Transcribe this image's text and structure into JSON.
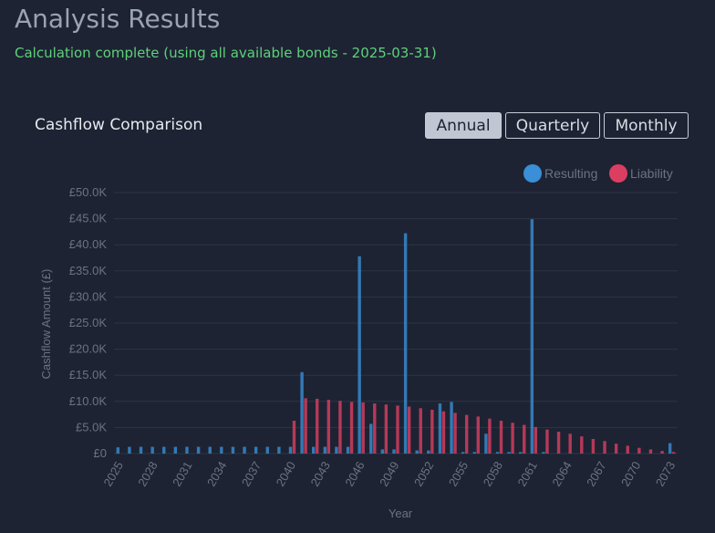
{
  "page": {
    "title": "Analysis Results",
    "status": "Calculation complete (using all available bonds - 2025-03-31)"
  },
  "card": {
    "title": "Cashflow Comparison",
    "toggles": [
      "Annual",
      "Quarterly",
      "Monthly"
    ],
    "active_toggle": "Annual"
  },
  "colors": {
    "resulting": "#3a8fd6",
    "liability": "#dc3e62",
    "grid": "#2c3444"
  },
  "chart_data": {
    "type": "bar",
    "xlabel": "Year",
    "ylabel": "Cashflow Amount (£)",
    "ylim": [
      0,
      50000
    ],
    "y_ticks": [
      "£0",
      "£5.0K",
      "£10.0K",
      "£15.0K",
      "£20.0K",
      "£25.0K",
      "£30.0K",
      "£35.0K",
      "£40.0K",
      "£45.0K",
      "£50.0K"
    ],
    "tick_labels": [
      "2025",
      "2028",
      "2031",
      "2034",
      "2037",
      "2040",
      "2043",
      "2046",
      "2049",
      "2052",
      "2055",
      "2058",
      "2061",
      "2064",
      "2067",
      "2070",
      "2073"
    ],
    "legend": {
      "position": "top-right"
    },
    "categories": [
      2025,
      2026,
      2027,
      2028,
      2029,
      2030,
      2031,
      2032,
      2033,
      2034,
      2035,
      2036,
      2037,
      2038,
      2039,
      2040,
      2041,
      2042,
      2043,
      2044,
      2045,
      2046,
      2047,
      2048,
      2049,
      2050,
      2051,
      2052,
      2053,
      2054,
      2055,
      2056,
      2057,
      2058,
      2059,
      2060,
      2061,
      2062,
      2063,
      2064,
      2065,
      2066,
      2067,
      2068,
      2069,
      2070,
      2071,
      2072,
      2073
    ],
    "series": [
      {
        "name": "Resulting",
        "values": [
          1200,
          1300,
          1300,
          1300,
          1300,
          1300,
          1300,
          1300,
          1300,
          1300,
          1300,
          1300,
          1300,
          1300,
          1300,
          1300,
          15600,
          1300,
          1300,
          1300,
          1300,
          37800,
          5700,
          800,
          800,
          42200,
          600,
          600,
          9600,
          9900,
          300,
          300,
          3800,
          300,
          300,
          300,
          44900,
          300,
          0,
          0,
          0,
          0,
          0,
          0,
          0,
          0,
          0,
          0,
          2000
        ]
      },
      {
        "name": "Liability",
        "values": [
          0,
          0,
          0,
          0,
          0,
          0,
          0,
          0,
          0,
          0,
          0,
          0,
          0,
          0,
          0,
          6300,
          10600,
          10500,
          10300,
          10100,
          9900,
          9800,
          9600,
          9400,
          9200,
          9000,
          8700,
          8400,
          8100,
          7800,
          7400,
          7100,
          6700,
          6300,
          5900,
          5500,
          5100,
          4600,
          4200,
          3800,
          3300,
          2800,
          2400,
          1900,
          1500,
          1100,
          800,
          500,
          300
        ]
      }
    ]
  }
}
